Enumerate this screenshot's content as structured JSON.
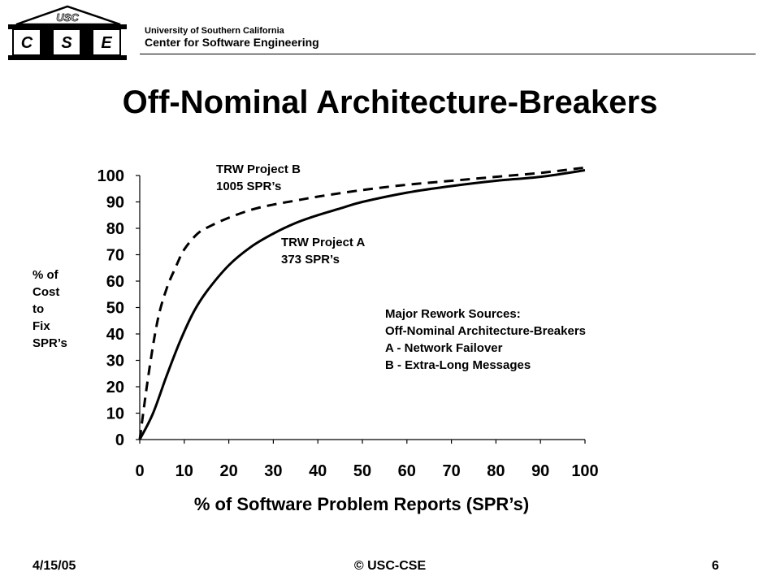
{
  "header": {
    "logo_top": "USC",
    "logo_letters": [
      "C",
      "S",
      "E"
    ],
    "org": "University of Southern California",
    "center": "Center for Software Engineering"
  },
  "title": "Off-Nominal Architecture-Breakers",
  "chart_data": {
    "type": "line",
    "title": "",
    "xlabel": "% of Software Problem Reports (SPR’s)",
    "ylabel_lines": [
      "% of",
      "Cost",
      "to",
      "Fix",
      "SPR’s"
    ],
    "xlim": [
      0,
      100
    ],
    "ylim": [
      0,
      100
    ],
    "xticks": [
      0,
      10,
      20,
      30,
      40,
      50,
      60,
      70,
      80,
      90,
      100
    ],
    "yticks": [
      0,
      10,
      20,
      30,
      40,
      50,
      60,
      70,
      80,
      90,
      100
    ],
    "grid": false,
    "series": [
      {
        "name": "TRW Project B",
        "label_lines": [
          "TRW Project B",
          "1005 SPR’s"
        ],
        "style": "dashed",
        "x": [
          0,
          2,
          4,
          6,
          8,
          10,
          13,
          16,
          20,
          25,
          30,
          35,
          40,
          50,
          60,
          70,
          80,
          90,
          100
        ],
        "y": [
          0,
          25,
          45,
          57,
          65,
          72,
          78,
          81,
          84,
          87,
          89,
          90.5,
          92,
          94.5,
          96.5,
          98,
          99.5,
          101,
          103
        ]
      },
      {
        "name": "TRW Project A",
        "label_lines": [
          "TRW Project A",
          "373 SPR’s"
        ],
        "style": "solid",
        "x": [
          0,
          3,
          6,
          9,
          12,
          15,
          20,
          25,
          30,
          35,
          40,
          45,
          50,
          60,
          70,
          80,
          90,
          100
        ],
        "y": [
          0,
          10,
          24,
          37,
          48,
          56,
          66,
          73,
          78,
          82,
          85,
          87.5,
          90,
          93.5,
          96,
          98,
          99.5,
          102
        ]
      }
    ],
    "annotation_lines": [
      "Major Rework Sources:",
      "Off-Nominal Architecture-Breakers",
      "A - Network Failover",
      "B - Extra-Long Messages"
    ]
  },
  "footer": {
    "date": "4/15/05",
    "copyright": "© USC-CSE",
    "page": "6"
  }
}
